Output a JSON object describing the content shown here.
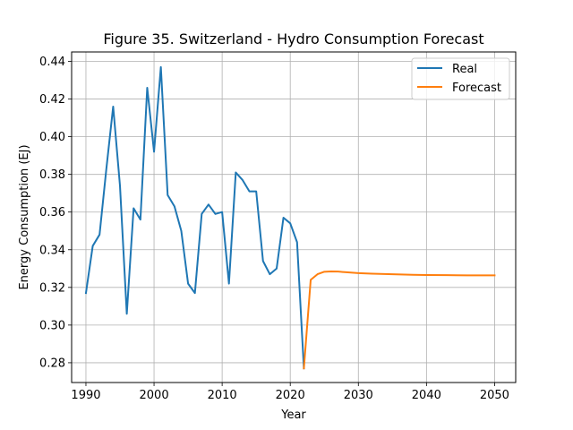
{
  "chart_data": {
    "type": "line",
    "title": "Figure 35. Switzerland - Hydro Consumption Forecast",
    "xlabel": "Year",
    "ylabel": "Energy Consumption (EJ)",
    "xlim": [
      1987.9,
      2053.1
    ],
    "ylim": [
      0.2695,
      0.445
    ],
    "x_ticks": [
      1990,
      2000,
      2010,
      2020,
      2030,
      2040,
      2050
    ],
    "y_ticks": [
      0.28,
      0.3,
      0.32,
      0.34,
      0.36,
      0.38,
      0.4,
      0.42,
      0.44
    ],
    "y_tick_labels": [
      "0.28",
      "0.30",
      "0.32",
      "0.34",
      "0.36",
      "0.38",
      "0.40",
      "0.42",
      "0.44"
    ],
    "grid": true,
    "legend_position": "top-right",
    "series": [
      {
        "name": "Real",
        "color": "#1f77b4",
        "x": [
          1990,
          1991,
          1992,
          1993,
          1994,
          1995,
          1996,
          1997,
          1998,
          1999,
          2000,
          2001,
          2002,
          2003,
          2004,
          2005,
          2006,
          2007,
          2008,
          2009,
          2010,
          2011,
          2012,
          2013,
          2014,
          2015,
          2016,
          2017,
          2018,
          2019,
          2020,
          2021,
          2022
        ],
        "y": [
          0.317,
          0.342,
          0.348,
          0.383,
          0.416,
          0.374,
          0.306,
          0.362,
          0.356,
          0.426,
          0.392,
          0.437,
          0.369,
          0.363,
          0.35,
          0.322,
          0.317,
          0.359,
          0.364,
          0.359,
          0.36,
          0.322,
          0.381,
          0.377,
          0.371,
          0.371,
          0.334,
          0.327,
          0.33,
          0.357,
          0.354,
          0.344,
          0.277
        ]
      },
      {
        "name": "Forecast",
        "color": "#ff7f0e",
        "x": [
          2022,
          2023,
          2024,
          2025,
          2026,
          2027,
          2028,
          2030,
          2032,
          2035,
          2038,
          2040,
          2043,
          2046,
          2048,
          2050
        ],
        "y": [
          0.277,
          0.324,
          0.327,
          0.3283,
          0.3285,
          0.3284,
          0.3281,
          0.3276,
          0.3273,
          0.327,
          0.3267,
          0.3266,
          0.3265,
          0.3264,
          0.3264,
          0.3264
        ]
      }
    ]
  }
}
